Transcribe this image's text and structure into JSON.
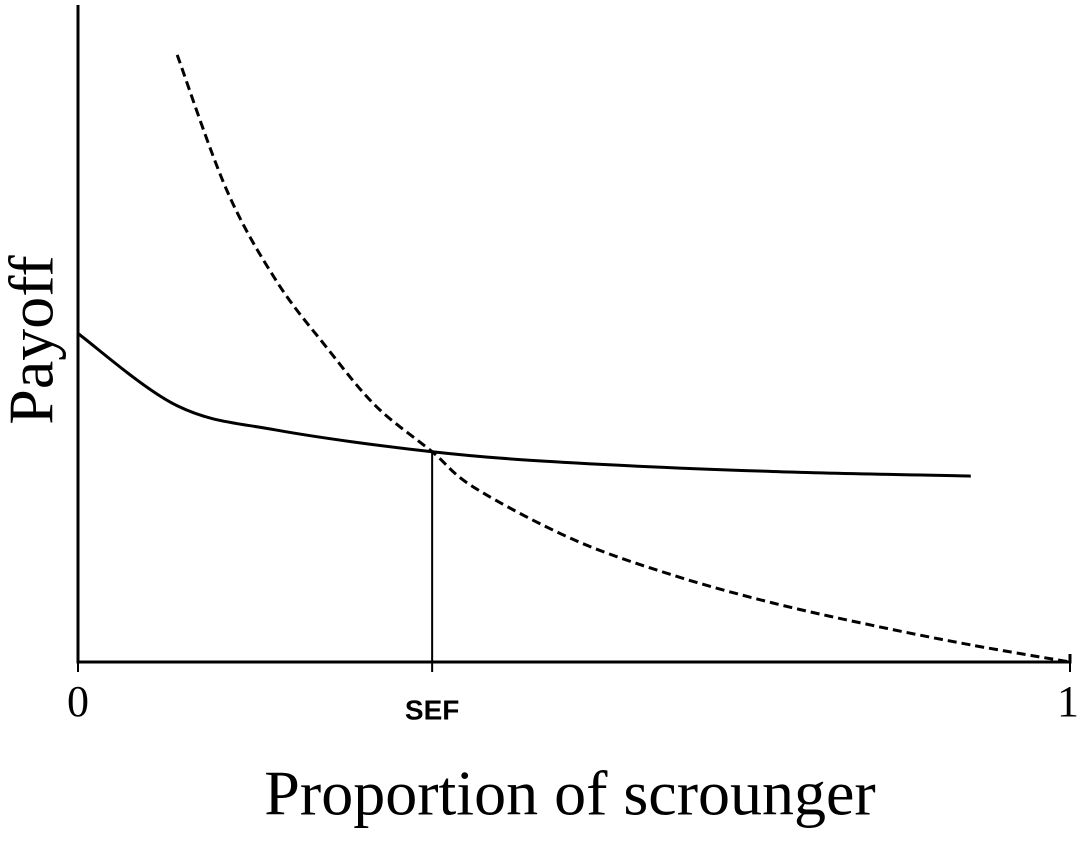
{
  "chart_data": {
    "type": "line",
    "x_label": "Proportion of scrounger",
    "y_label": "Payoff",
    "xlim": [
      0,
      1
    ],
    "ylim": [
      0,
      1
    ],
    "xticks": [
      0,
      {
        "value": 0.357,
        "label": "SEF"
      },
      1
    ],
    "series": [
      {
        "color": "#000000",
        "dashed": false,
        "x": [
          0,
          0.1,
          0.2,
          0.357,
          0.5,
          0.7,
          0.9
        ],
        "values": [
          0.5,
          0.39,
          0.353,
          0.32,
          0.303,
          0.29,
          0.283
        ]
      },
      {
        "color": "#000000",
        "dashed": true,
        "x": [
          0.1,
          0.15,
          0.2,
          0.25,
          0.3,
          0.357,
          0.4,
          0.5,
          0.6,
          0.7,
          0.8,
          0.9,
          1
        ],
        "values": [
          0.924,
          0.718,
          0.58,
          0.48,
          0.39,
          0.32,
          0.265,
          0.186,
          0.132,
          0.09,
          0.056,
          0.026,
          0
        ]
      }
    ]
  }
}
